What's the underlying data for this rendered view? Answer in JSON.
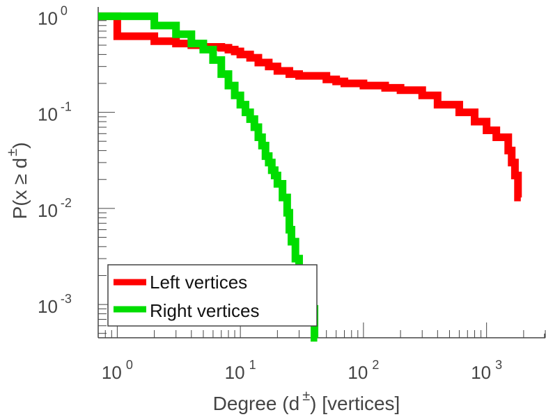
{
  "chart_data": {
    "type": "line",
    "step": true,
    "xscale": "log",
    "yscale": "log",
    "xlim": [
      0.7,
      3000
    ],
    "ylim": [
      0.00045,
      1.25
    ],
    "grid": false,
    "legend_position": "bottom-left",
    "xlabel": {
      "main": "Degree (d",
      "sup": "±",
      "tail": ") [vertices]"
    },
    "ylabel": {
      "main": "P(x ≥ d",
      "sup": "±",
      "tail": ")"
    },
    "x_major_ticks": [
      {
        "value": 1,
        "base": "10",
        "exp": "0"
      },
      {
        "value": 10,
        "base": "10",
        "exp": "1"
      },
      {
        "value": 100,
        "base": "10",
        "exp": "2"
      },
      {
        "value": 1000,
        "base": "10",
        "exp": "3"
      }
    ],
    "y_major_ticks": [
      {
        "value": 1,
        "base": "10",
        "exp": "0"
      },
      {
        "value": 0.1,
        "base": "10",
        "exp": "-1"
      },
      {
        "value": 0.01,
        "base": "10",
        "exp": "-2"
      },
      {
        "value": 0.001,
        "base": "10",
        "exp": "-3"
      }
    ],
    "series": [
      {
        "name": "Left vertices",
        "color": "#ff0000",
        "x": [
          0.7,
          1,
          2,
          3,
          4,
          5,
          7,
          8,
          9,
          10,
          12,
          14,
          17,
          20,
          25,
          30,
          50,
          60,
          70,
          100,
          150,
          200,
          300,
          400,
          600,
          800,
          1000,
          1200,
          1500,
          1600,
          1700,
          1800
        ],
        "y": [
          1,
          0.62,
          0.55,
          0.52,
          0.5,
          0.48,
          0.47,
          0.45,
          0.43,
          0.4,
          0.37,
          0.33,
          0.3,
          0.27,
          0.25,
          0.24,
          0.22,
          0.21,
          0.2,
          0.19,
          0.18,
          0.17,
          0.15,
          0.12,
          0.1,
          0.08,
          0.065,
          0.055,
          0.04,
          0.03,
          0.022,
          0.013
        ]
      },
      {
        "name": "Right vertices",
        "color": "#00dd00",
        "x": [
          0.7,
          1,
          2,
          3,
          4,
          5,
          6,
          7,
          8,
          9,
          10,
          11,
          12,
          13,
          14,
          15,
          16,
          17,
          18,
          19,
          20,
          22,
          24,
          25,
          26,
          28,
          30,
          35,
          40
        ],
        "y": [
          1,
          1,
          0.8,
          0.65,
          0.52,
          0.45,
          0.35,
          0.25,
          0.19,
          0.15,
          0.12,
          0.1,
          0.085,
          0.07,
          0.055,
          0.045,
          0.035,
          0.03,
          0.025,
          0.022,
          0.018,
          0.013,
          0.009,
          0.006,
          0.0045,
          0.003,
          0.0018,
          0.0009,
          0.00045
        ]
      }
    ]
  }
}
